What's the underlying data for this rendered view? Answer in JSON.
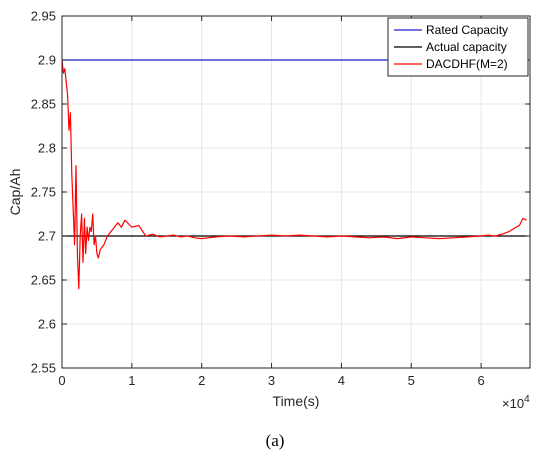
{
  "chart_data": {
    "type": "line",
    "xlabel": "Time(s)",
    "ylabel": "Cap/Ah",
    "x_exponent_label": "×10",
    "x_exponent_power": "4",
    "xlim": [
      0,
      6.7
    ],
    "ylim": [
      2.55,
      2.95
    ],
    "x_ticks": [
      0,
      1,
      2,
      3,
      4,
      5,
      6
    ],
    "x_tick_labels": [
      "0",
      "1",
      "2",
      "3",
      "4",
      "5",
      "6"
    ],
    "y_ticks": [
      2.55,
      2.6,
      2.65,
      2.7,
      2.75,
      2.8,
      2.85,
      2.9,
      2.95
    ],
    "y_tick_labels": [
      "2.55",
      "2.6",
      "2.65",
      "2.7",
      "2.75",
      "2.8",
      "2.85",
      "2.9",
      "2.95"
    ],
    "grid": true,
    "legend_position": "top-right",
    "series": [
      {
        "name": "Rated Capacity",
        "color": "#1f1fd0",
        "x": [
          0,
          6.65
        ],
        "y": [
          2.9,
          2.9
        ]
      },
      {
        "name": "Actual capacity",
        "color": "#000000",
        "x": [
          0,
          6.65
        ],
        "y": [
          2.7,
          2.7
        ]
      },
      {
        "name": "DACDHF(M=2)",
        "color": "#ff0000",
        "x": [
          0,
          0.02,
          0.04,
          0.06,
          0.08,
          0.1,
          0.12,
          0.14,
          0.16,
          0.18,
          0.2,
          0.22,
          0.24,
          0.26,
          0.28,
          0.3,
          0.32,
          0.34,
          0.36,
          0.38,
          0.4,
          0.42,
          0.44,
          0.46,
          0.48,
          0.5,
          0.52,
          0.55,
          0.6,
          0.65,
          0.7,
          0.75,
          0.8,
          0.85,
          0.9,
          1.0,
          1.1,
          1.2,
          1.3,
          1.4,
          1.5,
          1.6,
          1.7,
          1.8,
          1.9,
          2.0,
          2.2,
          2.4,
          2.6,
          2.8,
          3.0,
          3.2,
          3.4,
          3.6,
          3.8,
          4.0,
          4.2,
          4.4,
          4.6,
          4.8,
          5.0,
          5.2,
          5.4,
          5.6,
          5.8,
          6.0,
          6.1,
          6.2,
          6.3,
          6.4,
          6.5,
          6.55,
          6.6,
          6.65
        ],
        "y": [
          2.9,
          2.885,
          2.89,
          2.875,
          2.86,
          2.82,
          2.84,
          2.77,
          2.73,
          2.69,
          2.78,
          2.68,
          2.64,
          2.7,
          2.725,
          2.67,
          2.72,
          2.68,
          2.71,
          2.695,
          2.71,
          2.705,
          2.725,
          2.69,
          2.7,
          2.68,
          2.675,
          2.685,
          2.69,
          2.7,
          2.705,
          2.71,
          2.715,
          2.71,
          2.718,
          2.71,
          2.712,
          2.7,
          2.702,
          2.699,
          2.7,
          2.701,
          2.699,
          2.7,
          2.698,
          2.697,
          2.699,
          2.7,
          2.699,
          2.7,
          2.701,
          2.7,
          2.701,
          2.7,
          2.699,
          2.7,
          2.699,
          2.698,
          2.699,
          2.697,
          2.699,
          2.698,
          2.697,
          2.698,
          2.699,
          2.7,
          2.701,
          2.7,
          2.702,
          2.705,
          2.71,
          2.712,
          2.72,
          2.718
        ]
      }
    ],
    "caption": "(a)"
  }
}
